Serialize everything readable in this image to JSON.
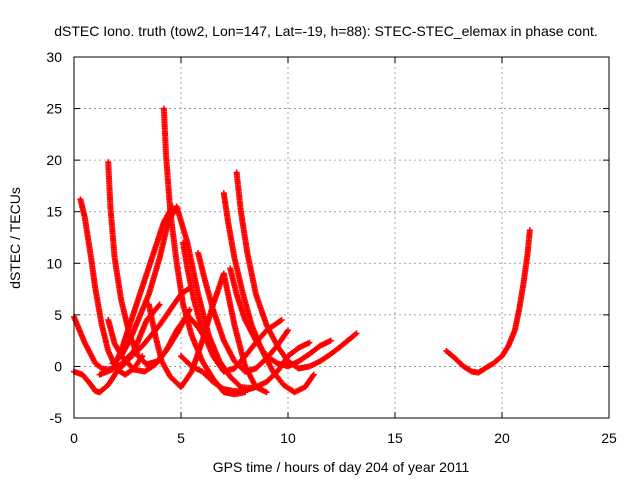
{
  "chart_data": {
    "type": "scatter",
    "title": "dSTEC Iono. truth (tow2, Lon=147, Lat=-19, h=88): STEC-STEC_elemax in phase cont.",
    "xlabel": "GPS time / hours of day 204 of year 2011",
    "ylabel": "dSTEC  / TECUs",
    "xlim": [
      0,
      25
    ],
    "ylim": [
      -5,
      30
    ],
    "xticks": [
      "0",
      "5",
      "10",
      "15",
      "20",
      "25"
    ],
    "yticks": [
      "-5",
      "0",
      "5",
      "10",
      "15",
      "20",
      "25",
      "30"
    ],
    "grid": true,
    "marker": "plus",
    "color": "#ff0000",
    "series": [
      {
        "x": [
          0.0,
          0.5,
          1.0,
          1.3,
          1.7,
          2.2,
          2.8,
          3.4,
          4.0
        ],
        "y": [
          4.8,
          2.3,
          0.3,
          -0.2,
          -0.3,
          0.2,
          1.5,
          4.5,
          6.0
        ]
      },
      {
        "x": [
          0.0,
          0.4,
          0.8,
          1.0,
          1.2,
          1.6,
          2.0,
          2.6,
          3.2,
          4.0,
          4.5,
          5.0,
          5.4
        ],
        "y": [
          -0.5,
          -0.8,
          -1.8,
          -2.4,
          -2.5,
          -1.8,
          -0.5,
          0.8,
          2.0,
          4.0,
          5.5,
          7.0,
          7.6
        ]
      },
      {
        "x": [
          0.3,
          0.5,
          0.8,
          1.0,
          1.3,
          1.6,
          2.0,
          2.4,
          2.8,
          3.2
        ],
        "y": [
          16.2,
          14.5,
          10.5,
          7.5,
          4.0,
          1.5,
          -0.3,
          -0.8,
          -0.2,
          1.0
        ]
      },
      {
        "x": [
          1.6,
          1.7,
          1.9,
          2.2,
          2.6,
          3.0,
          3.4,
          3.9,
          4.4,
          4.9,
          5.4
        ],
        "y": [
          19.8,
          15.5,
          10.5,
          6.5,
          3.0,
          1.0,
          0.2,
          0.5,
          1.8,
          3.5,
          5.5
        ]
      },
      {
        "x": [
          1.6,
          1.9,
          2.3,
          2.8,
          3.3,
          3.8,
          4.3,
          4.8,
          5.3,
          5.8,
          6.2
        ],
        "y": [
          4.5,
          2.2,
          0.8,
          -0.3,
          -0.5,
          0.2,
          1.5,
          3.5,
          5.0,
          3.8,
          2.5
        ]
      },
      {
        "x": [
          1.8,
          2.2,
          2.6,
          3.0,
          3.5,
          4.0,
          4.4,
          4.8,
          5.3,
          5.8,
          6.3,
          6.8,
          7.3,
          7.8,
          8.3
        ],
        "y": [
          0.3,
          1.0,
          2.5,
          4.5,
          7.0,
          10.5,
          14.0,
          15.5,
          12.0,
          7.0,
          3.0,
          0.5,
          -1.0,
          -2.0,
          -2.1
        ]
      },
      {
        "x": [
          1.2,
          1.8,
          2.2,
          2.6,
          3.0,
          3.4,
          3.8,
          4.2,
          4.6
        ],
        "y": [
          -0.8,
          -0.3,
          1.5,
          4.0,
          6.5,
          9.0,
          11.5,
          14.0,
          15.5
        ]
      },
      {
        "x": [
          3.5,
          3.8,
          4.1,
          4.5,
          5.0,
          5.5,
          6.0,
          6.5,
          7.0,
          7.5,
          8.0,
          8.5,
          9.0
        ],
        "y": [
          6.0,
          3.0,
          0.5,
          -1.0,
          -2.0,
          -0.5,
          2.5,
          6.0,
          9.0,
          4.0,
          0.0,
          -2.0,
          -2.5
        ]
      },
      {
        "x": [
          4.2,
          4.3,
          4.5,
          4.8,
          5.1,
          5.5,
          6.0,
          6.5,
          7.0,
          7.5,
          8.0
        ],
        "y": [
          25.0,
          20.5,
          15.0,
          10.0,
          6.0,
          3.0,
          0.5,
          -1.2,
          -2.5,
          -2.7,
          -2.5
        ]
      },
      {
        "x": [
          5.1,
          5.3,
          5.6,
          6.0,
          6.5,
          7.0,
          7.5,
          8.0,
          8.5,
          9.0,
          9.7
        ],
        "y": [
          12.0,
          9.5,
          6.5,
          3.5,
          1.0,
          -0.5,
          -0.2,
          1.0,
          2.3,
          3.5,
          4.5
        ]
      },
      {
        "x": [
          5.0,
          5.5,
          6.0,
          6.5,
          7.0,
          7.5,
          8.0,
          8.5,
          9.0,
          9.5,
          10.0,
          10.5,
          11.0
        ],
        "y": [
          1.0,
          0.0,
          -0.5,
          -1.5,
          -2.2,
          -2.4,
          -2.3,
          -2.0,
          -1.5,
          -0.5,
          1.0,
          1.8,
          2.3
        ]
      },
      {
        "x": [
          5.8,
          6.1,
          6.5,
          7.0,
          7.5,
          8.0,
          8.5,
          9.0,
          9.5,
          10.0
        ],
        "y": [
          11.0,
          8.5,
          5.5,
          2.5,
          0.5,
          -0.5,
          -0.2,
          0.8,
          2.0,
          3.5
        ]
      },
      {
        "x": [
          7.0,
          7.2,
          7.5,
          7.9,
          8.3,
          8.8,
          9.3,
          9.8,
          10.3,
          10.8,
          11.2
        ],
        "y": [
          16.8,
          14.0,
          10.5,
          7.0,
          4.0,
          1.5,
          -0.5,
          -1.8,
          -2.5,
          -2.0,
          -0.8
        ]
      },
      {
        "x": [
          7.6,
          7.8,
          8.1,
          8.5,
          9.0,
          9.5,
          10.0,
          10.5,
          11.0,
          11.5,
          12.0,
          12.5,
          13.2
        ],
        "y": [
          18.8,
          15.0,
          11.0,
          7.0,
          4.0,
          2.0,
          0.5,
          -0.2,
          0.0,
          0.5,
          1.2,
          2.0,
          3.2
        ]
      },
      {
        "x": [
          7.3,
          7.6,
          8.0,
          8.5,
          9.0,
          9.5,
          10.0,
          10.5,
          11.0,
          11.5,
          12.0
        ],
        "y": [
          9.5,
          7.0,
          4.5,
          2.5,
          1.0,
          0.3,
          0.0,
          0.5,
          1.2,
          2.0,
          2.5
        ]
      },
      {
        "x": [
          17.4,
          17.8,
          18.2,
          18.6,
          18.9,
          19.2,
          19.6,
          20.0,
          20.3,
          20.6,
          20.8,
          21.0,
          21.2,
          21.3
        ],
        "y": [
          1.5,
          0.8,
          0.0,
          -0.5,
          -0.6,
          -0.2,
          0.3,
          1.0,
          2.0,
          3.5,
          5.5,
          8.0,
          11.0,
          13.2
        ]
      }
    ]
  }
}
